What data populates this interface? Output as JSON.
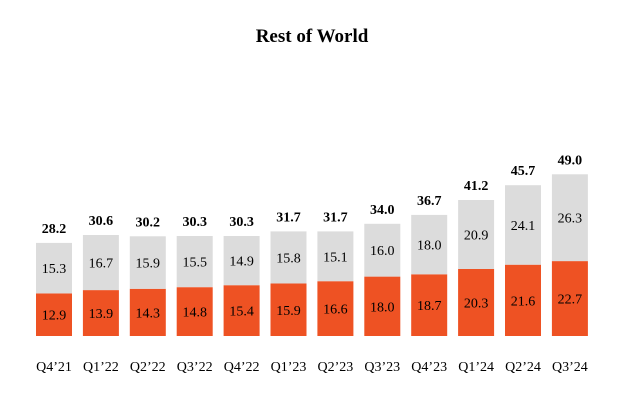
{
  "chart_data": {
    "type": "bar",
    "stacked": true,
    "title": "Rest of World",
    "categories": [
      "Q4’21",
      "Q1’22",
      "Q2’22",
      "Q3’22",
      "Q4’22",
      "Q1’23",
      "Q2’23",
      "Q3’23",
      "Q4’23",
      "Q1’24",
      "Q2’24",
      "Q3’24"
    ],
    "series": [
      {
        "values": [
          12.9,
          13.9,
          14.3,
          14.8,
          15.4,
          15.9,
          16.6,
          18.0,
          18.7,
          20.3,
          21.6,
          22.7
        ],
        "labels": [
          "12.9",
          "13.9",
          "14.3",
          "14.8",
          "15.4",
          "15.9",
          "16.6",
          "18.0",
          "18.7",
          "20.3",
          "21.6",
          "22.7"
        ],
        "color": "#EE5223"
      },
      {
        "values": [
          15.3,
          16.7,
          15.9,
          15.5,
          14.9,
          15.8,
          15.1,
          16.0,
          18.0,
          20.9,
          24.1,
          26.3
        ],
        "labels": [
          "15.3",
          "16.7",
          "15.9",
          "15.5",
          "14.9",
          "15.8",
          "15.1",
          "16.0",
          "18.0",
          "20.9",
          "24.1",
          "26.3"
        ],
        "color": "#DCDCDC"
      }
    ],
    "totals": [
      28.2,
      30.6,
      30.2,
      30.3,
      30.3,
      31.7,
      31.7,
      34.0,
      36.7,
      41.2,
      45.7,
      49.0
    ],
    "total_labels": [
      "28.2",
      "30.6",
      "30.2",
      "30.3",
      "30.3",
      "31.7",
      "31.7",
      "34.0",
      "36.7",
      "41.2",
      "45.7",
      "49.0"
    ],
    "ylim": [
      0,
      50
    ],
    "grid": false,
    "legend": "none"
  }
}
